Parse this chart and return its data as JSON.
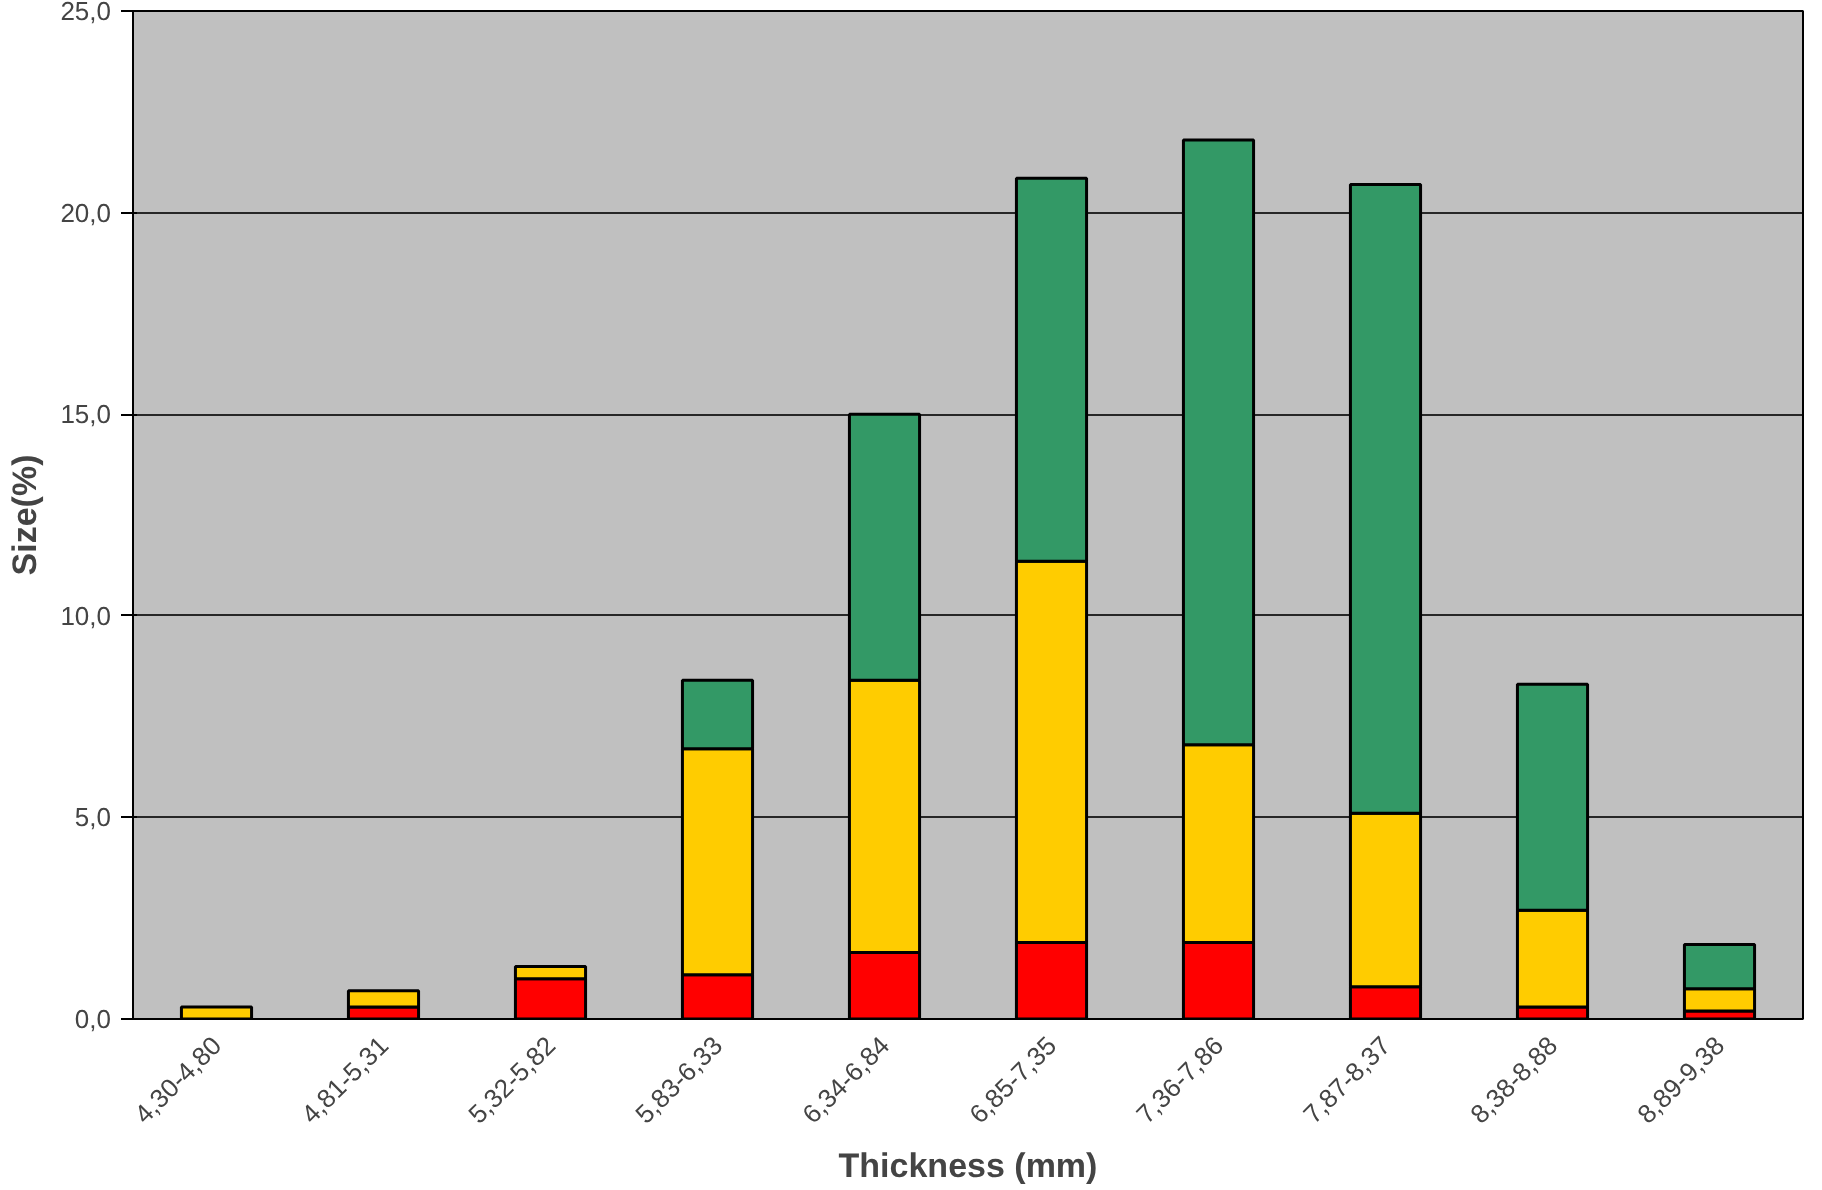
{
  "chart_data": {
    "type": "bar",
    "stacked": true,
    "xlabel": "Thickness (mm)",
    "ylabel": "Size(%)",
    "categories": [
      "4,30-4,80",
      "4,81-5,31",
      "5,32-5,82",
      "5,83-6,33",
      "6,34-6,84",
      "6,85-7,35",
      "7,36-7,86",
      "7,87-8,37",
      "8,38-8,88",
      "8,89-9,38"
    ],
    "series": [
      {
        "color": "#ff0000",
        "values": [
          0,
          0.3,
          1.0,
          1.1,
          1.65,
          1.9,
          1.9,
          0.8,
          0.3,
          0.2
        ]
      },
      {
        "color": "#ffcc00",
        "values": [
          0.3,
          0.4,
          0.3,
          5.6,
          6.75,
          9.45,
          4.9,
          4.3,
          2.4,
          0.55
        ]
      },
      {
        "color": "#339966",
        "values": [
          0,
          0,
          0,
          1.7,
          6.6,
          9.5,
          15.0,
          15.6,
          5.6,
          1.1
        ]
      }
    ],
    "ylim": [
      0,
      25
    ],
    "yticks": [
      {
        "value": 0,
        "label": "0,0"
      },
      {
        "value": 5,
        "label": "5,0"
      },
      {
        "value": 10,
        "label": "10,0"
      },
      {
        "value": 15,
        "label": "15,0"
      },
      {
        "value": 20,
        "label": "20,0"
      },
      {
        "value": 25,
        "label": "25,0"
      }
    ],
    "grid": "y"
  }
}
